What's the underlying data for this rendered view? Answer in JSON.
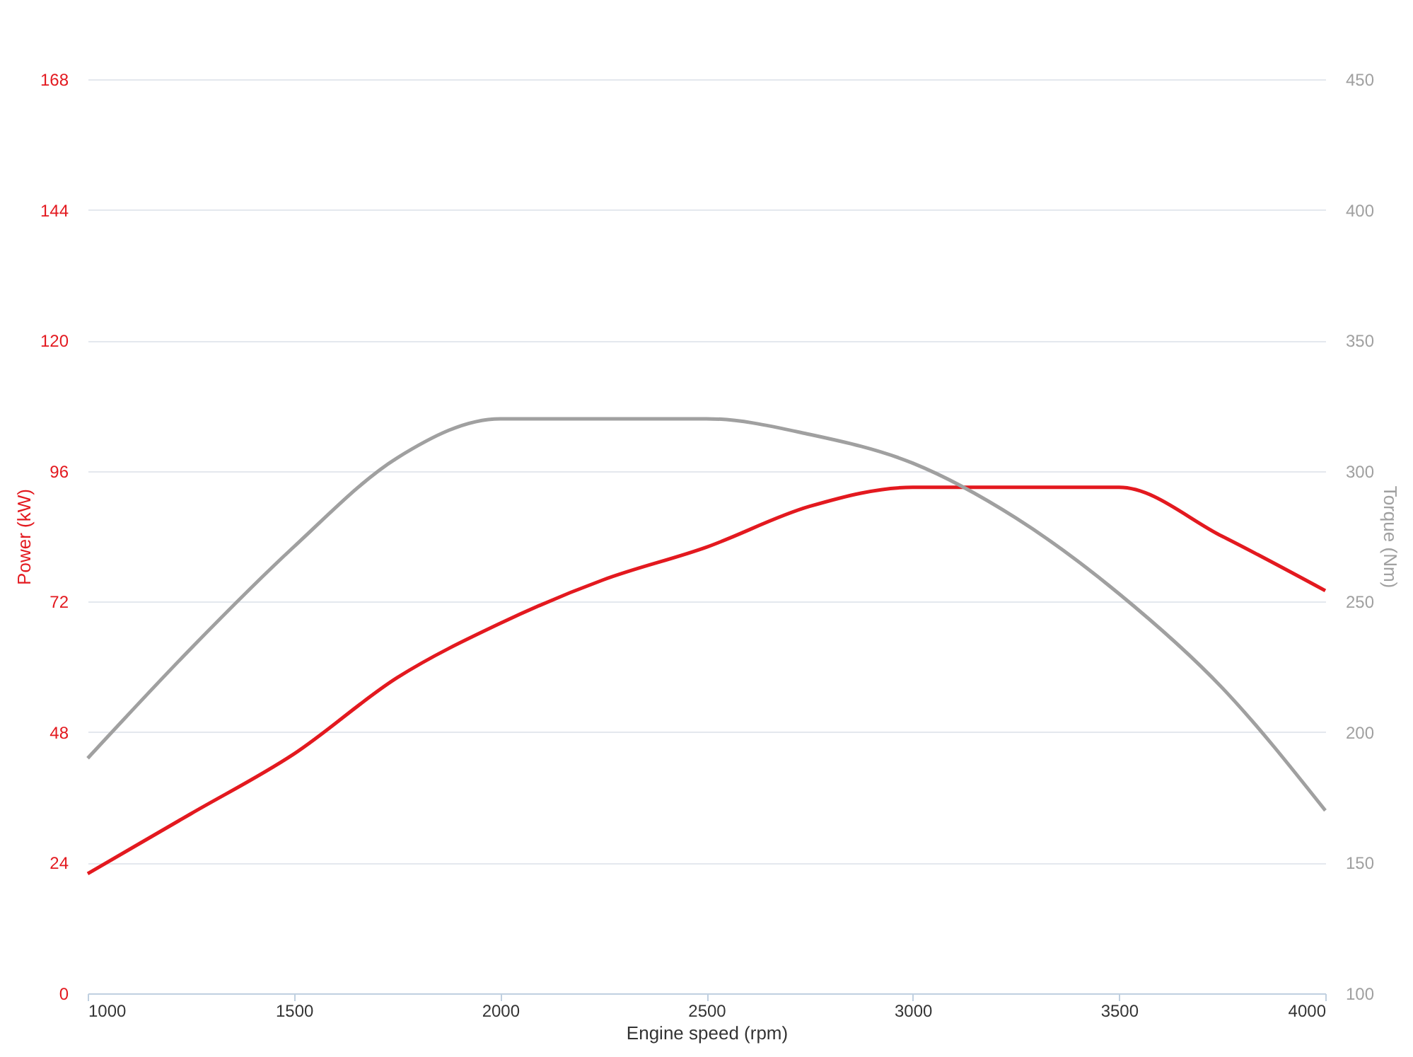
{
  "chart_data": {
    "type": "line",
    "xlabel": "Engine speed (rpm)",
    "ylabel": "Power (kW)",
    "y2label": "Torque (Nm)",
    "x": [
      1000,
      1250,
      1500,
      1750,
      2000,
      2250,
      2500,
      2750,
      3000,
      3250,
      3500,
      3750,
      4000
    ],
    "series": [
      {
        "color": "#e3191f",
        "values": [
          22,
          33,
          44,
          58,
          68,
          76,
          82,
          89.5,
          93,
          93,
          93,
          84,
          74
        ]
      },
      {
        "color": "#a0a0a0",
        "axis": "y2",
        "values": [
          190,
          232,
          271,
          305,
          320,
          320,
          320,
          314,
          303,
          282,
          253,
          217,
          170
        ]
      }
    ],
    "xlim": [
      1000,
      4000
    ],
    "xticks": [
      1000,
      1500,
      2000,
      2500,
      3000,
      3500,
      4000
    ],
    "ylim": [
      0,
      168
    ],
    "yticks": [
      0,
      24,
      48,
      72,
      96,
      120,
      144,
      168
    ],
    "y2lim": [
      100,
      450
    ],
    "y2ticks": [
      100,
      150,
      200,
      250,
      300,
      350,
      400,
      450
    ],
    "grid": "y",
    "marker": "none",
    "line_style": "solid"
  }
}
